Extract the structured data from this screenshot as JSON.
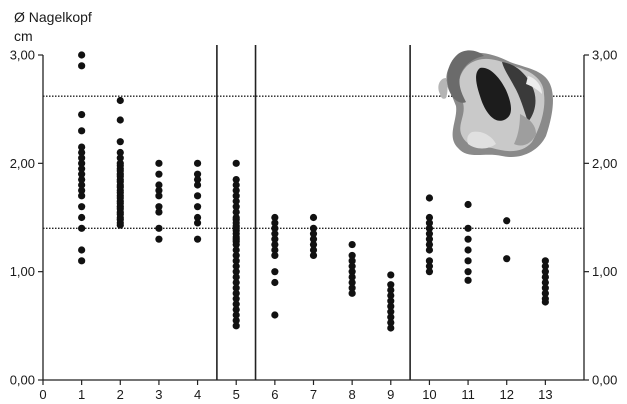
{
  "chart_data": {
    "type": "scatter",
    "title": "",
    "ylabel": [
      "Ø Nagelkopf",
      "cm"
    ],
    "xlabel": "",
    "x_ticks": [
      "0",
      "1",
      "2",
      "3",
      "4",
      "5",
      "6",
      "7",
      "8",
      "9",
      "10",
      "11",
      "12",
      "13"
    ],
    "y_ticks": [
      "0,00",
      "1,00",
      "2,00",
      "3,00"
    ],
    "y_ticks_right": [
      "0,00",
      "1,00",
      "2,00",
      "3,00"
    ],
    "xlim": [
      0,
      14
    ],
    "ylim": [
      0,
      3.0
    ],
    "grid": false,
    "dotted_reference_lines": [
      1.4,
      2.62
    ],
    "vertical_separators": [
      4.5,
      5.5,
      9.5
    ],
    "image": "iron-nail-head-photo",
    "marker_color": "#111111",
    "series": [
      {
        "x": 1,
        "values": [
          3.0,
          2.9,
          2.45,
          2.3,
          2.15,
          2.1,
          2.05,
          2.0,
          1.95,
          1.9,
          1.85,
          1.8,
          1.75,
          1.7,
          1.6,
          1.5,
          1.4,
          1.2,
          1.1
        ]
      },
      {
        "x": 2,
        "values": [
          2.58,
          2.4,
          2.2,
          2.1,
          2.05,
          2.0,
          1.98,
          1.95,
          1.93,
          1.9,
          1.88,
          1.85,
          1.83,
          1.8,
          1.78,
          1.75,
          1.73,
          1.7,
          1.68,
          1.65,
          1.63,
          1.6,
          1.58,
          1.55,
          1.53,
          1.5,
          1.48,
          1.45,
          1.43
        ]
      },
      {
        "x": 3,
        "values": [
          2.0,
          1.9,
          1.8,
          1.75,
          1.7,
          1.6,
          1.55,
          1.4,
          1.3
        ]
      },
      {
        "x": 4,
        "values": [
          2.0,
          1.9,
          1.85,
          1.8,
          1.7,
          1.6,
          1.5,
          1.45,
          1.3
        ]
      },
      {
        "x": 5,
        "values": [
          2.0,
          1.85,
          1.8,
          1.75,
          1.7,
          1.65,
          1.6,
          1.55,
          1.5,
          1.48,
          1.45,
          1.42,
          1.4,
          1.38,
          1.35,
          1.32,
          1.3,
          1.28,
          1.25,
          1.2,
          1.15,
          1.1,
          1.05,
          1.0,
          0.95,
          0.9,
          0.85,
          0.8,
          0.75,
          0.7,
          0.65,
          0.6,
          0.55,
          0.5
        ]
      },
      {
        "x": 6,
        "values": [
          1.5,
          1.45,
          1.4,
          1.35,
          1.3,
          1.25,
          1.2,
          1.15,
          1.0,
          0.9,
          0.6
        ]
      },
      {
        "x": 7,
        "values": [
          1.5,
          1.4,
          1.35,
          1.3,
          1.25,
          1.2,
          1.15
        ]
      },
      {
        "x": 8,
        "values": [
          1.25,
          1.15,
          1.1,
          1.05,
          1.0,
          0.95,
          0.9,
          0.85,
          0.8
        ]
      },
      {
        "x": 9,
        "values": [
          0.97,
          0.88,
          0.83,
          0.78,
          0.73,
          0.68,
          0.63,
          0.58,
          0.53,
          0.48
        ]
      },
      {
        "x": 10,
        "values": [
          1.68,
          1.5,
          1.45,
          1.4,
          1.35,
          1.3,
          1.25,
          1.2,
          1.1,
          1.05,
          1.0
        ]
      },
      {
        "x": 11,
        "values": [
          1.62,
          1.4,
          1.3,
          1.2,
          1.1,
          1.0,
          0.92
        ]
      },
      {
        "x": 12,
        "values": [
          1.47,
          1.12
        ]
      },
      {
        "x": 13,
        "values": [
          1.1,
          1.05,
          1.0,
          0.95,
          0.9,
          0.85,
          0.8,
          0.75,
          0.72
        ]
      }
    ]
  }
}
